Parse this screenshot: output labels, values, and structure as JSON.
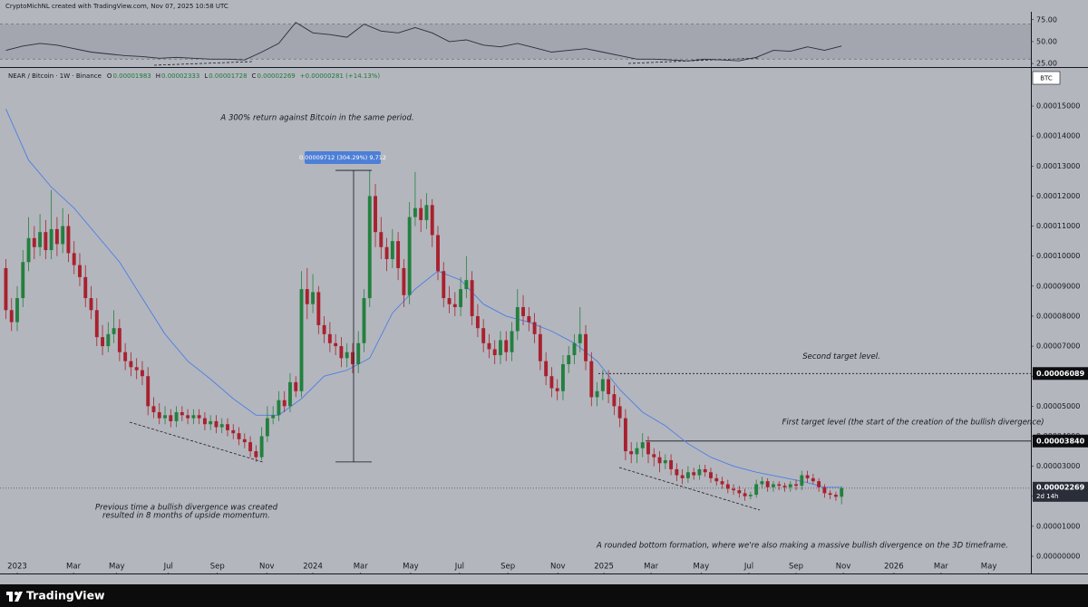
{
  "header": {
    "credit": "CryptoMichNL created with TradingView.com, Nov 07, 2025 10:58 UTC",
    "symbol": "NEAR / Bitcoin · 1W · Binance",
    "ohlc_letters": [
      "O",
      "H",
      "L",
      "C"
    ],
    "change": "+0.00000281 (+14.13%)",
    "currency": "BTC",
    "countdown": "2d 14h"
  },
  "footer": {
    "brand": "TradingView"
  },
  "chart_data": {
    "type": "candlestick",
    "grid": false,
    "up_color": "#23803f",
    "down_color": "#a8212e",
    "xlim": [
      -3.03,
      178.3
    ],
    "xticks": [
      {
        "value": 0,
        "label": "2023"
      },
      {
        "value": 9.9,
        "label": "Mar"
      },
      {
        "value": 17.5,
        "label": "May"
      },
      {
        "value": 26.6,
        "label": "Jul"
      },
      {
        "value": 35.2,
        "label": "Sep"
      },
      {
        "value": 43.9,
        "label": "Nov"
      },
      {
        "value": 52,
        "label": "2024"
      },
      {
        "value": 60.4,
        "label": "Mar"
      },
      {
        "value": 69.2,
        "label": "May"
      },
      {
        "value": 77.8,
        "label": "Jul"
      },
      {
        "value": 86.3,
        "label": "Sep"
      },
      {
        "value": 95.1,
        "label": "Nov"
      },
      {
        "value": 103.2,
        "label": "2025"
      },
      {
        "value": 111.5,
        "label": "Mar"
      },
      {
        "value": 120.3,
        "label": "May"
      },
      {
        "value": 128.7,
        "label": "Jul"
      },
      {
        "value": 137,
        "label": "Sep"
      },
      {
        "value": 145.3,
        "label": "Nov"
      },
      {
        "value": 154.2,
        "label": "2026"
      },
      {
        "value": 162.5,
        "label": "Mar"
      },
      {
        "value": 170.9,
        "label": "May"
      }
    ],
    "ylim": [
      -5.43e-06,
      0.00016238
    ],
    "yticks": [
      {
        "value": 0,
        "label": "0.00000000"
      },
      {
        "value": 1e-05,
        "label": "0.00001000"
      },
      {
        "value": 2e-05,
        "label": "0.00002000"
      },
      {
        "value": 3e-05,
        "label": "0.00003000"
      },
      {
        "value": 4e-05,
        "label": "0.00004000"
      },
      {
        "value": 5e-05,
        "label": "0.00005000"
      },
      {
        "value": 6e-05,
        "label": "0.00006000"
      },
      {
        "value": 7e-05,
        "label": "0.00007000"
      },
      {
        "value": 8e-05,
        "label": "0.00008000"
      },
      {
        "value": 9e-05,
        "label": "0.00009000"
      },
      {
        "value": 0.0001,
        "label": "0.00010000"
      },
      {
        "value": 0.00011,
        "label": "0.00011000"
      },
      {
        "value": 0.00012,
        "label": "0.00012000"
      },
      {
        "value": 0.00013,
        "label": "0.00013000"
      },
      {
        "value": 0.00014,
        "label": "0.00014000"
      },
      {
        "value": 0.00015,
        "label": "0.00015000"
      }
    ],
    "x": [
      -2,
      -1,
      0,
      1,
      2,
      3,
      4,
      5,
      6,
      7,
      8,
      9,
      10,
      11,
      12,
      13,
      14,
      15,
      16,
      17,
      18,
      19,
      20,
      21,
      22,
      23,
      24,
      25,
      26,
      27,
      28,
      29,
      30,
      31,
      32,
      33,
      34,
      35,
      36,
      37,
      38,
      39,
      40,
      41,
      42,
      43,
      44,
      45,
      46,
      47,
      48,
      49,
      50,
      51,
      52,
      53,
      54,
      55,
      56,
      57,
      58,
      59,
      60,
      61,
      62,
      63,
      64,
      65,
      66,
      67,
      68,
      69,
      70,
      71,
      72,
      73,
      74,
      75,
      76,
      77,
      78,
      79,
      80,
      81,
      82,
      83,
      84,
      85,
      86,
      87,
      88,
      89,
      90,
      91,
      92,
      93,
      94,
      95,
      96,
      97,
      98,
      99,
      100,
      101,
      102,
      103,
      104,
      105,
      106,
      107,
      108,
      109,
      110,
      111,
      112,
      113,
      114,
      115,
      116,
      117,
      118,
      119,
      120,
      121,
      122,
      123,
      124,
      125,
      126,
      127,
      128,
      129,
      130,
      131,
      132,
      133,
      134,
      135,
      136,
      137,
      138,
      139,
      140,
      141,
      142,
      143,
      144,
      145
    ],
    "open": [
      9.6e-05,
      8.2e-05,
      7.8e-05,
      8.6e-05,
      9.8e-05,
      0.000106,
      0.000103,
      0.000108,
      0.000102,
      0.000109,
      0.000104,
      0.00011,
      0.000101,
      9.7e-05,
      9.3e-05,
      8.6e-05,
      8.2e-05,
      7.3e-05,
      7e-05,
      7.4e-05,
      7.6e-05,
      6.8e-05,
      6.5e-05,
      6.3e-05,
      6.2e-05,
      6e-05,
      5e-05,
      4.8e-05,
      4.6e-05,
      4.7e-05,
      4.5e-05,
      4.8e-05,
      4.7e-05,
      4.6e-05,
      4.7e-05,
      4.6e-05,
      4.4e-05,
      4.5e-05,
      4.3e-05,
      4.4e-05,
      4.2e-05,
      4.1e-05,
      3.9e-05,
      3.8e-05,
      3.5e-05,
      3.3e-05,
      4e-05,
      4.6e-05,
      4.7e-05,
      5.2e-05,
      5e-05,
      5.8e-05,
      5.5e-05,
      8.9e-05,
      8.4e-05,
      8.8e-05,
      7.7e-05,
      7.4e-05,
      7.1e-05,
      7e-05,
      6.6e-05,
      6.8e-05,
      6.4e-05,
      7.1e-05,
      8.6e-05,
      0.00012,
      0.000108,
      0.000103,
      9.9e-05,
      0.000105,
      9.6e-05,
      8.7e-05,
      0.000113,
      0.000116,
      0.000112,
      0.000117,
      0.000107,
      9.5e-05,
      8.6e-05,
      8.4e-05,
      8.3e-05,
      8.9e-05,
      9.2e-05,
      8e-05,
      7.6e-05,
      7.1e-05,
      6.9e-05,
      6.7e-05,
      7.2e-05,
      6.8e-05,
      7.5e-05,
      8.3e-05,
      8e-05,
      7.8e-05,
      7.4e-05,
      6.5e-05,
      6e-05,
      5.6e-05,
      5.5e-05,
      6.4e-05,
      6.7e-05,
      7.1e-05,
      7.4e-05,
      6.5e-05,
      5.3e-05,
      5.5e-05,
      5.9e-05,
      5.4e-05,
      5e-05,
      4.6e-05,
      3.5e-05,
      3.4e-05,
      3.6e-05,
      3.8e-05,
      3.4e-05,
      3.3e-05,
      3.1e-05,
      3.2e-05,
      2.9e-05,
      2.7e-05,
      2.6e-05,
      2.8e-05,
      2.7e-05,
      2.9e-05,
      2.8e-05,
      2.6e-05,
      2.5e-05,
      2.4e-05,
      2.25e-05,
      2.2e-05,
      2.1e-05,
      2e-05,
      2.05e-05,
      2.4e-05,
      2.5e-05,
      2.3e-05,
      2.4e-05,
      2.35e-05,
      2.3e-05,
      2.4e-05,
      2.35e-05,
      2.7e-05,
      2.6e-05,
      2.5e-05,
      2.3e-05,
      2.1e-05,
      2.05e-05,
      1.983e-05
    ],
    "high": [
      9.9e-05,
      8.6e-05,
      9e-05,
      0.000102,
      0.000113,
      0.00011,
      0.000114,
      0.000112,
      0.000122,
      0.000113,
      0.000116,
      0.000114,
      0.000105,
      0.000101,
      9.7e-05,
      9e-05,
      8.6e-05,
      7.7e-05,
      7.8e-05,
      8.2e-05,
      7.9e-05,
      7.1e-05,
      6.8e-05,
      6.6e-05,
      6.5e-05,
      6.3e-05,
      5.3e-05,
      5.1e-05,
      5e-05,
      4.9e-05,
      5e-05,
      5e-05,
      4.9e-05,
      4.9e-05,
      4.9e-05,
      4.8e-05,
      4.7e-05,
      4.7e-05,
      4.6e-05,
      4.6e-05,
      4.4e-05,
      4.3e-05,
      4.1e-05,
      4e-05,
      3.7e-05,
      4.3e-05,
      5e-05,
      5e-05,
      5.5e-05,
      5.5e-05,
      6.1e-05,
      6e-05,
      9.5e-05,
      9.6e-05,
      9.4e-05,
      9e-05,
      8e-05,
      7.8e-05,
      7.4e-05,
      7.3e-05,
      7.1e-05,
      7.1e-05,
      7.5e-05,
      8.9e-05,
      0.00012856,
      0.000124,
      0.000113,
      0.000106,
      0.000109,
      0.000108,
      9.9e-05,
      0.000118,
      0.000128,
      0.000119,
      0.000121,
      0.000119,
      0.00011,
      9.8e-05,
      9e-05,
      8.8e-05,
      9.3e-05,
      0.0001,
      9.5e-05,
      8.4e-05,
      7.9e-05,
      7.4e-05,
      7.2e-05,
      7.5e-05,
      7.5e-05,
      7.8e-05,
      8.9e-05,
      8.7e-05,
      8.3e-05,
      8.1e-05,
      7.7e-05,
      6.8e-05,
      6.3e-05,
      5.9e-05,
      6.7e-05,
      7e-05,
      7.4e-05,
      8.3e-05,
      7.7e-05,
      6.8e-05,
      5.8e-05,
      6.2e-05,
      6.2e-05,
      5.7e-05,
      5.3e-05,
      4.9e-05,
      3.8e-05,
      3.8e-05,
      4.1e-05,
      4e-05,
      3.6e-05,
      3.5e-05,
      3.4e-05,
      3.4e-05,
      3.1e-05,
      2.9e-05,
      3e-05,
      2.95e-05,
      3.05e-05,
      3.05e-05,
      2.95e-05,
      2.75e-05,
      2.65e-05,
      2.55e-05,
      2.4e-05,
      2.35e-05,
      2.25e-05,
      2.15e-05,
      2.55e-05,
      2.65e-05,
      2.6e-05,
      2.5e-05,
      2.5e-05,
      2.45e-05,
      2.5e-05,
      2.55e-05,
      2.85e-05,
      2.85e-05,
      2.75e-05,
      2.6e-05,
      2.4e-05,
      2.2e-05,
      2.15e-05,
      2.333e-05
    ],
    "low": [
      7.9e-05,
      7.5e-05,
      7.5e-05,
      8.3e-05,
      9.5e-05,
      9.9e-05,
      0.0001,
      9.9e-05,
      9.9e-05,
      0.0001,
      0.000101,
      9.8e-05,
      9.4e-05,
      9e-05,
      8.3e-05,
      7.9e-05,
      7e-05,
      6.7e-05,
      6.8e-05,
      7.1e-05,
      6.5e-05,
      6.2e-05,
      6e-05,
      5.9e-05,
      5.7e-05,
      4.7e-05,
      4.6e-05,
      4.4e-05,
      4.4e-05,
      4.3e-05,
      4.3e-05,
      4.5e-05,
      4.4e-05,
      4.4e-05,
      4.4e-05,
      4.2e-05,
      4.2e-05,
      4.1e-05,
      4.1e-05,
      4e-05,
      3.9e-05,
      3.7e-05,
      3.6e-05,
      3.3e-05,
      3.144e-05,
      3.2e-05,
      3.8e-05,
      4.4e-05,
      4.5e-05,
      4.8e-05,
      4.8e-05,
      5.3e-05,
      5.3e-05,
      7.9e-05,
      8.1e-05,
      7.4e-05,
      7.1e-05,
      6.8e-05,
      6.7e-05,
      6.3e-05,
      6.3e-05,
      6.1e-05,
      6.1e-05,
      6.8e-05,
      8.3e-05,
      0.000103,
      9.9e-05,
      9.5e-05,
      9.6e-05,
      9.2e-05,
      8.3e-05,
      8.4e-05,
      0.00011,
      0.000108,
      0.000109,
      0.000103,
      9.2e-05,
      8.3e-05,
      8.1e-05,
      8e-05,
      8e-05,
      8.6e-05,
      7.7e-05,
      7.3e-05,
      6.8e-05,
      6.6e-05,
      6.4e-05,
      6.4e-05,
      6.5e-05,
      6.5e-05,
      7.2e-05,
      7.7e-05,
      7.5e-05,
      7.1e-05,
      6.2e-05,
      5.7e-05,
      5.3e-05,
      5.2e-05,
      5.2e-05,
      6.1e-05,
      6.4e-05,
      6.8e-05,
      6.2e-05,
      5e-05,
      5e-05,
      5.2e-05,
      5.1e-05,
      4.7e-05,
      4.3e-05,
      3.2e-05,
      3.1e-05,
      3.1e-05,
      3.3e-05,
      3.1e-05,
      3e-05,
      2.8e-05,
      2.9e-05,
      2.7e-05,
      2.5e-05,
      2.4e-05,
      2.45e-05,
      2.55e-05,
      2.55e-05,
      2.65e-05,
      2.45e-05,
      2.35e-05,
      2.25e-05,
      2.1e-05,
      2.05e-05,
      1.95e-05,
      1.85e-05,
      1.9e-05,
      1.95e-05,
      2.25e-05,
      2.15e-05,
      2.15e-05,
      2.2e-05,
      2.15e-05,
      2.15e-05,
      2.2e-05,
      2.2e-05,
      2.45e-05,
      2.4e-05,
      2.15e-05,
      1.95e-05,
      1.9e-05,
      1.85e-05,
      1.728e-05
    ],
    "close": [
      8.2e-05,
      7.8e-05,
      8.6e-05,
      9.8e-05,
      0.000106,
      0.000103,
      0.000108,
      0.000102,
      0.000109,
      0.000104,
      0.00011,
      0.000101,
      9.7e-05,
      9.3e-05,
      8.6e-05,
      8.2e-05,
      7.3e-05,
      7e-05,
      7.4e-05,
      7.6e-05,
      6.8e-05,
      6.5e-05,
      6.3e-05,
      6.2e-05,
      6e-05,
      5e-05,
      4.8e-05,
      4.6e-05,
      4.7e-05,
      4.5e-05,
      4.8e-05,
      4.7e-05,
      4.6e-05,
      4.7e-05,
      4.6e-05,
      4.4e-05,
      4.5e-05,
      4.3e-05,
      4.4e-05,
      4.2e-05,
      4.1e-05,
      3.9e-05,
      3.8e-05,
      3.5e-05,
      3.3e-05,
      4e-05,
      4.6e-05,
      4.7e-05,
      5.2e-05,
      5e-05,
      5.8e-05,
      5.5e-05,
      8.9e-05,
      8.4e-05,
      8.8e-05,
      7.7e-05,
      7.4e-05,
      7.1e-05,
      7e-05,
      6.6e-05,
      6.8e-05,
      6.4e-05,
      7.1e-05,
      8.6e-05,
      0.00012,
      0.000108,
      0.000103,
      9.9e-05,
      0.000105,
      9.6e-05,
      8.7e-05,
      0.000113,
      0.000116,
      0.000112,
      0.000117,
      0.000107,
      9.5e-05,
      8.6e-05,
      8.4e-05,
      8.3e-05,
      8.9e-05,
      9.2e-05,
      8e-05,
      7.6e-05,
      7.1e-05,
      6.9e-05,
      6.7e-05,
      7.2e-05,
      6.8e-05,
      7.5e-05,
      8.3e-05,
      8e-05,
      7.8e-05,
      7.4e-05,
      6.5e-05,
      6e-05,
      5.6e-05,
      5.5e-05,
      6.4e-05,
      6.7e-05,
      7.1e-05,
      7.4e-05,
      6.5e-05,
      5.3e-05,
      5.5e-05,
      5.9e-05,
      5.4e-05,
      5e-05,
      4.6e-05,
      3.5e-05,
      3.4e-05,
      3.6e-05,
      3.8e-05,
      3.4e-05,
      3.3e-05,
      3.1e-05,
      3.2e-05,
      2.9e-05,
      2.7e-05,
      2.6e-05,
      2.8e-05,
      2.7e-05,
      2.9e-05,
      2.8e-05,
      2.6e-05,
      2.5e-05,
      2.4e-05,
      2.25e-05,
      2.2e-05,
      2.1e-05,
      2e-05,
      2.05e-05,
      2.4e-05,
      2.5e-05,
      2.3e-05,
      2.4e-05,
      2.35e-05,
      2.3e-05,
      2.4e-05,
      2.35e-05,
      2.7e-05,
      2.6e-05,
      2.5e-05,
      2.3e-05,
      2.1e-05,
      2.05e-05,
      1.983e-05,
      2.269e-05
    ],
    "ma": {
      "color": "#4a7fe6",
      "x": [
        -2,
        2,
        6,
        10,
        14,
        18,
        22,
        26,
        30,
        34,
        38,
        42,
        46,
        50,
        54,
        58,
        62,
        66,
        70,
        74,
        78,
        82,
        86,
        90,
        94,
        98,
        102,
        106,
        110,
        114,
        118,
        122,
        126,
        130,
        134,
        138,
        142,
        145
      ],
      "values": [
        0.000149,
        0.000132,
        0.000123,
        0.000116,
        0.000107,
        9.8e-05,
        8.6e-05,
        7.4e-05,
        6.5e-05,
        5.9e-05,
        5.25e-05,
        4.7e-05,
        4.7e-05,
        5.25e-05,
        6e-05,
        6.2e-05,
        6.6e-05,
        8.1e-05,
        8.9e-05,
        9.5e-05,
        9.2e-05,
        8.4e-05,
        8e-05,
        7.8e-05,
        7.5e-05,
        7.1e-05,
        6.5e-05,
        5.55e-05,
        4.8e-05,
        4.35e-05,
        3.75e-05,
        3.3e-05,
        3e-05,
        2.8e-05,
        2.65e-05,
        2.5e-05,
        2.3e-05,
        2.3e-05
      ]
    },
    "rsi": {
      "color": "#2a2e39",
      "ylim": [
        22,
        82
      ],
      "band": [
        30,
        70
      ],
      "yticks": [
        {
          "value": 75,
          "label": "75.00"
        },
        {
          "value": 50,
          "label": "50.00"
        },
        {
          "value": 25,
          "label": "25.00"
        }
      ],
      "x": [
        -2,
        1,
        4,
        7,
        10,
        13,
        16,
        19,
        22,
        25,
        28,
        31,
        34,
        37,
        40,
        43,
        46,
        49,
        52,
        55,
        58,
        61,
        64,
        67,
        70,
        73,
        76,
        79,
        82,
        85,
        88,
        91,
        94,
        97,
        100,
        103,
        106,
        109,
        112,
        115,
        118,
        121,
        124,
        127,
        130,
        133,
        136,
        139,
        142,
        145
      ],
      "values": [
        40,
        45,
        48,
        46,
        42,
        38,
        36,
        34,
        33,
        31,
        32,
        31,
        30,
        30,
        29,
        38,
        48,
        72,
        60,
        58,
        55,
        70,
        62,
        60,
        66,
        60,
        50,
        52,
        46,
        44,
        48,
        43,
        38,
        40,
        42,
        38,
        34,
        30,
        30,
        29,
        28,
        30,
        29,
        28,
        32,
        40,
        39,
        44,
        40,
        45
      ]
    },
    "levels": [
      {
        "value": 6.089e-05,
        "label": "0.00006089",
        "name": "Second target level."
      },
      {
        "value": 3.84e-05,
        "label": "0.00003840",
        "name": "First target level (the start of the creation of the bullish divergence)"
      }
    ],
    "measure_label": "0.00009712 (304.29%) 9,712",
    "annotations": [
      "A 300% return against Bitcoin in the same period.",
      "Previous time a bullish divergence was created",
      "resulted in 8 months of upside momentum.",
      "A rounded bottom formation, where we're also making a massive bullish divergence on the 3D timeframe."
    ]
  }
}
